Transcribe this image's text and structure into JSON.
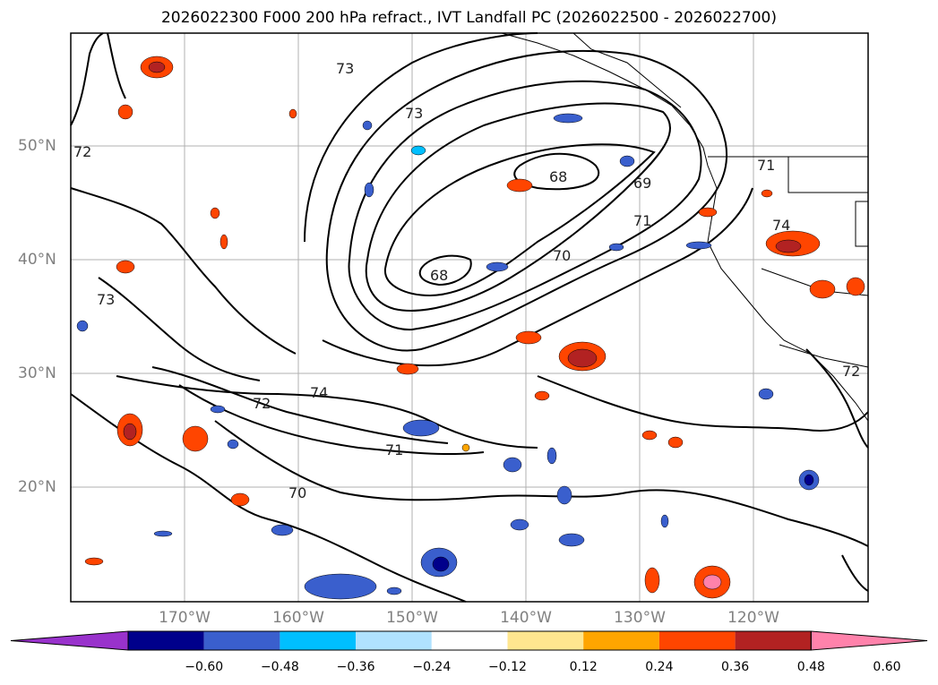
{
  "title": "2026022300 F000 200 hPa refract., IVT Landfall PC (2026022500 - 2026022700)",
  "map": {
    "lon_labels": [
      "170°W",
      "160°W",
      "150°W",
      "140°W",
      "130°W",
      "120°W"
    ],
    "lat_labels": [
      "50°N",
      "40°N",
      "30°N",
      "20°N"
    ],
    "contour_labels": [
      "72",
      "73",
      "73",
      "68",
      "69",
      "71",
      "70",
      "68",
      "71",
      "74",
      "73",
      "74",
      "72",
      "71",
      "70",
      "72"
    ]
  },
  "colorbar": {
    "ticks": [
      "−0.60",
      "−0.48",
      "−0.36",
      "−0.24",
      "−0.12",
      "0.12",
      "0.24",
      "0.36",
      "0.48",
      "0.60"
    ],
    "colors": [
      "#9932cc",
      "#00008b",
      "#3a5fcd",
      "#00bfff",
      "#b0e2ff",
      "#ffffff",
      "#ffe68f",
      "#ffa500",
      "#ff4500",
      "#b22222",
      "#ff82ab"
    ]
  }
}
